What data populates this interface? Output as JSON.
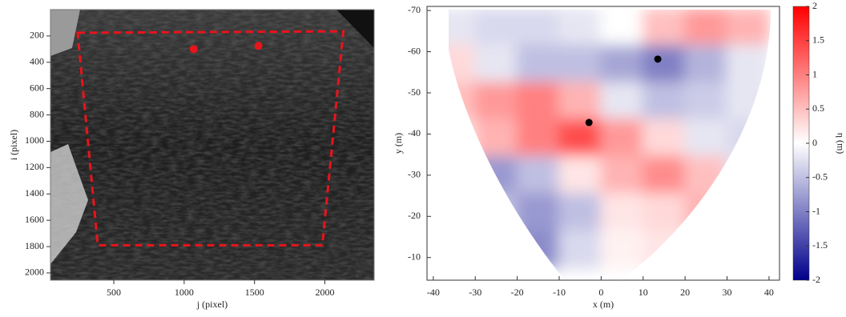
{
  "chart_data": [
    {
      "type": "image",
      "xlabel": "j (pixel)",
      "ylabel": "i (pixel)",
      "xlim": [
        50,
        2350
      ],
      "ylim": [
        0,
        2055
      ],
      "y_inverted": true,
      "xticks": [
        500,
        1000,
        1500,
        2000
      ],
      "yticks": [
        200,
        400,
        600,
        800,
        1000,
        1200,
        1400,
        1600,
        1800,
        2000
      ],
      "region": {
        "j": [
          243,
          2131,
          1982,
          386
        ],
        "i": [
          176,
          165,
          1790,
          1790
        ],
        "color": "#e8141c"
      },
      "points": {
        "j": [
          1068,
          1528
        ],
        "i": [
          300,
          275
        ],
        "color": "#e8141c"
      }
    },
    {
      "type": "heatmap",
      "xlabel": "x (m)",
      "ylabel": "y (m)",
      "xlim": [
        -41.5,
        42.5
      ],
      "ylim": [
        -71,
        -4.5
      ],
      "y_inverted": true,
      "xticks": [
        -40,
        -30,
        -20,
        -10,
        0,
        10,
        20,
        30,
        40
      ],
      "yticks": [
        -70,
        -60,
        -50,
        -40,
        -30,
        -20,
        -10
      ],
      "x": [
        -35,
        -25,
        -15,
        -5,
        5,
        15,
        25,
        35
      ],
      "y": [
        -66,
        -57,
        -48,
        -39,
        -30,
        -21,
        -12
      ],
      "z": [
        [
          -0.2,
          -0.3,
          -0.3,
          -0.2,
          0,
          0.5,
          0.8,
          0.6
        ],
        [
          0.3,
          -0.2,
          -0.5,
          -0.5,
          -0.7,
          -1.0,
          -0.6,
          -0.2
        ],
        [
          0.5,
          0.8,
          1.0,
          0.6,
          -0.2,
          -0.5,
          -0.4,
          -0.2
        ],
        [
          0.2,
          0.6,
          1.0,
          1.4,
          0.8,
          0.3,
          -0.2,
          -0.3
        ],
        [
          null,
          -0.8,
          -0.5,
          0.2,
          0.6,
          0.9,
          0.5,
          -0.2
        ],
        [
          null,
          -0.5,
          -0.8,
          -0.5,
          0.2,
          0.3,
          0.6,
          null
        ],
        [
          null,
          null,
          -0.9,
          -0.3,
          0.1,
          0.2,
          null,
          null
        ]
      ],
      "zlim": [
        -2,
        2
      ],
      "colormap": [
        "#00008b",
        "#ffffff",
        "#ff0000"
      ],
      "colorbar_ticks": [
        -2,
        -1.5,
        -1,
        -0.5,
        0,
        0.5,
        1,
        1.5,
        2
      ],
      "colorbar_label": "η (m)",
      "points": {
        "x": [
          13.5,
          -2.9
        ],
        "y": [
          -58.2,
          -42.8
        ],
        "color": "#000000"
      }
    }
  ]
}
